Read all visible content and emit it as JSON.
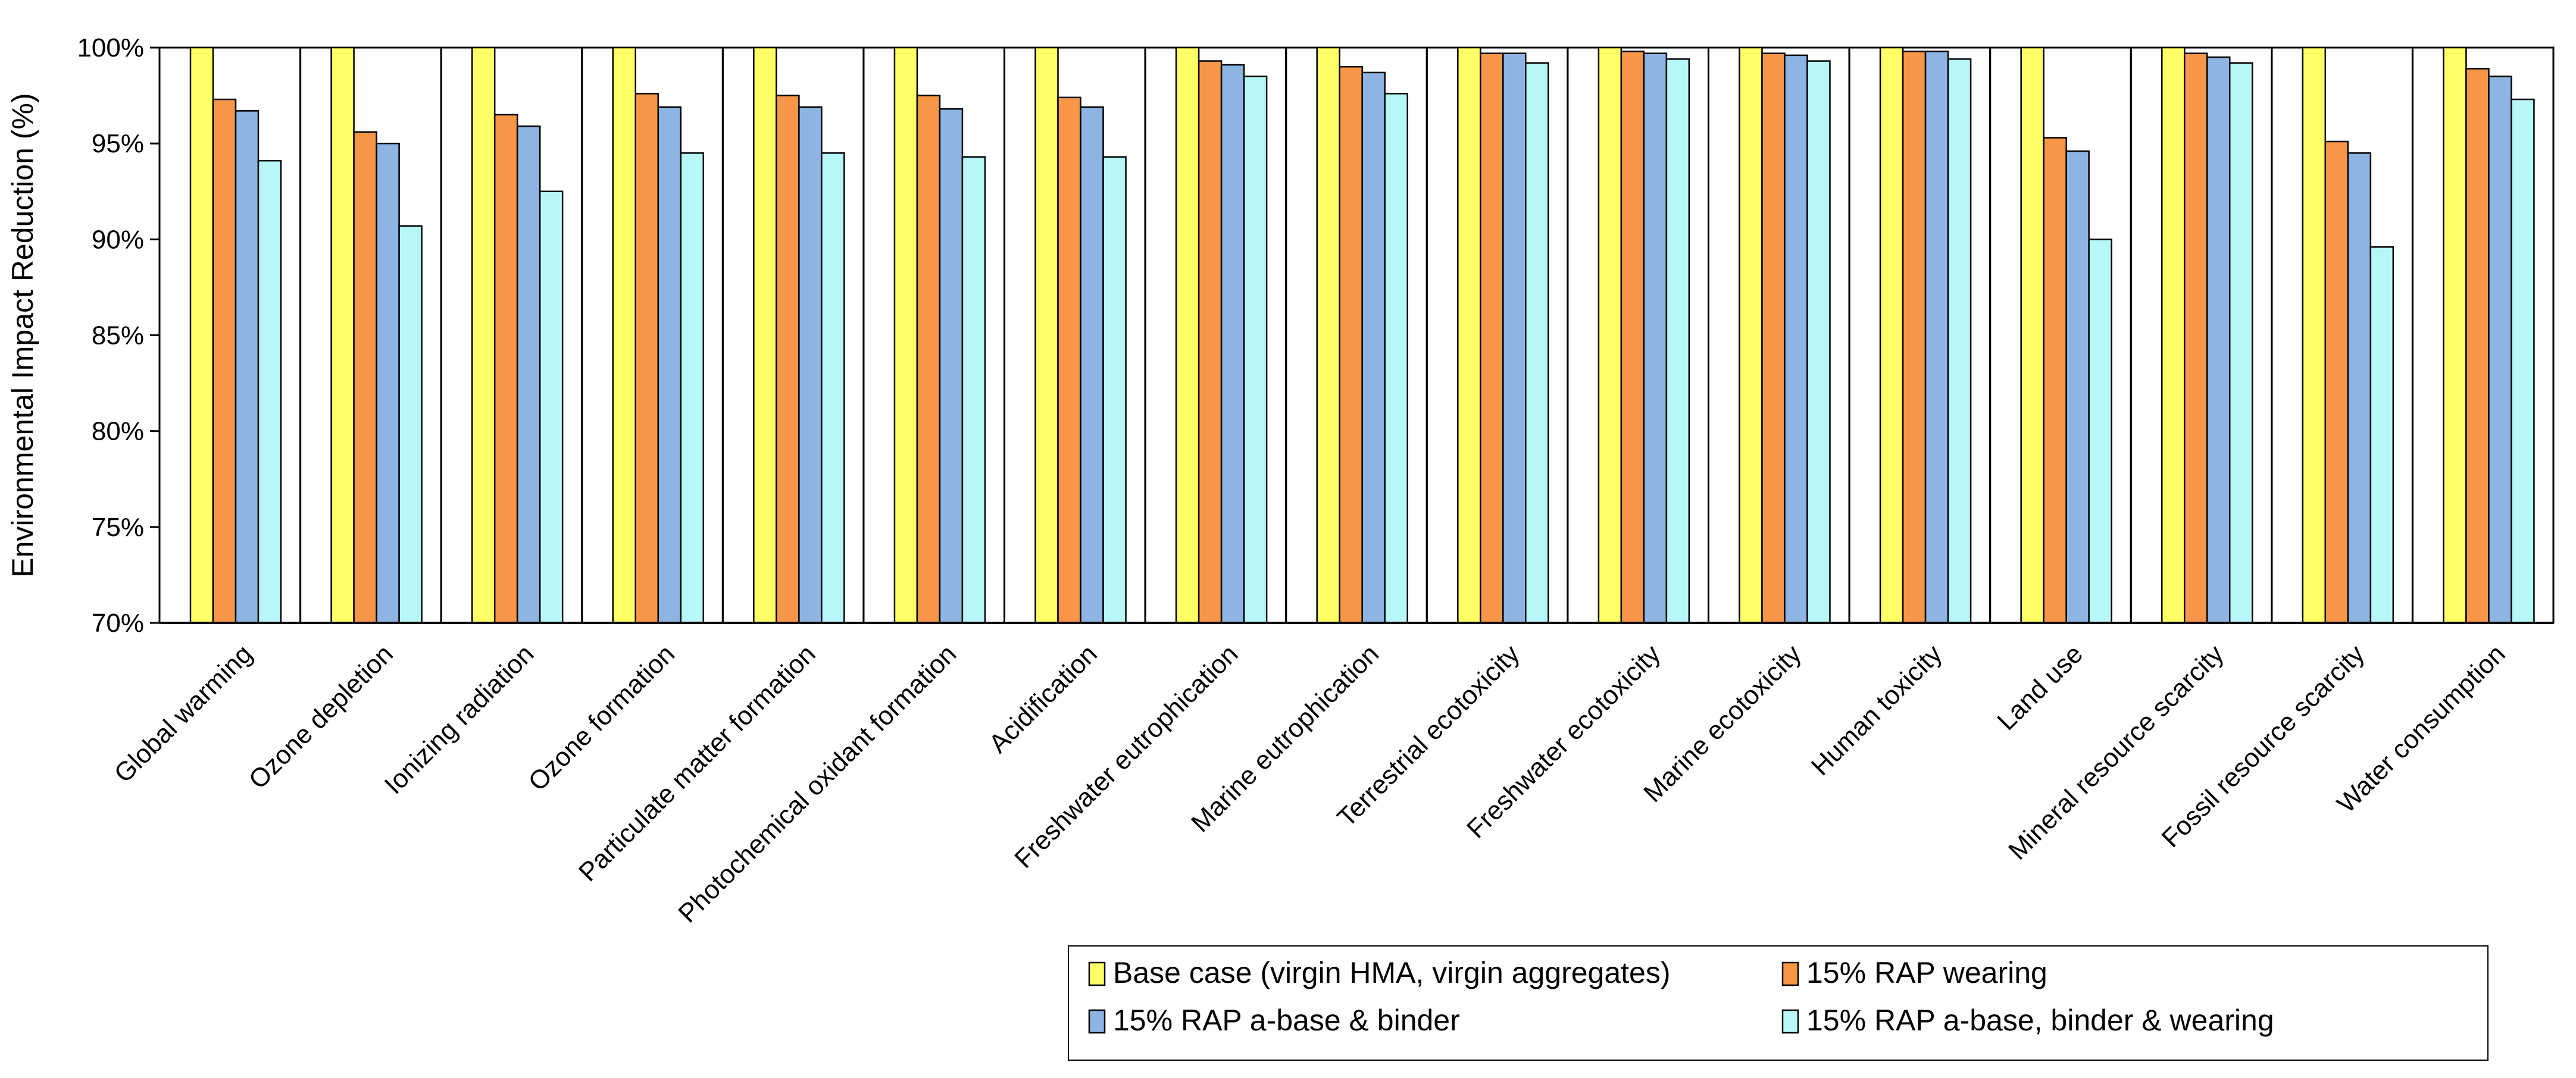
{
  "chart_data": {
    "type": "bar",
    "title": "",
    "xlabel": "",
    "ylabel": "Environmental Impact Reduction (%)",
    "ylim": [
      70,
      100
    ],
    "yticks": [
      "70%",
      "75%",
      "80%",
      "85%",
      "90%",
      "95%",
      "100%"
    ],
    "ytick_values": [
      70,
      75,
      80,
      85,
      90,
      95,
      100
    ],
    "grid": false,
    "legend_position": "bottom-right",
    "categories": [
      "Global warming",
      "Ozone depletion",
      "Ionizing radiation",
      "Ozone formation",
      "Particulate matter formation",
      "Photochemical oxidant formation",
      "Acidification",
      "Freshwater eutrophication",
      "Marine eutrophication",
      "Terrestrial ecotoxicity",
      "Freshwater ecotoxicity",
      "Marine ecotoxicity",
      "Human toxicity",
      "Land use",
      "Mineral resource scarcity",
      "Fossil resource scarcity",
      "Water consumption"
    ],
    "series": [
      {
        "name": "Base case (virgin HMA, virgin aggregates)",
        "color": "#ffff66",
        "values": [
          100,
          100,
          100,
          100,
          100,
          100,
          100,
          100,
          100,
          100,
          100,
          100,
          100,
          100,
          100,
          100,
          100
        ]
      },
      {
        "name": "15% RAP wearing",
        "color": "#f79646",
        "values": [
          97.3,
          95.6,
          96.5,
          97.6,
          97.5,
          97.5,
          97.4,
          99.3,
          99.0,
          99.7,
          99.8,
          99.7,
          99.8,
          95.3,
          99.7,
          95.1,
          98.9
        ]
      },
      {
        "name": "15% RAP a-base & binder",
        "color": "#8db4e2",
        "values": [
          96.7,
          95.0,
          95.9,
          96.9,
          96.9,
          96.8,
          96.9,
          99.1,
          98.7,
          99.7,
          99.7,
          99.6,
          99.8,
          94.6,
          99.5,
          94.5,
          98.5
        ]
      },
      {
        "name": "15% RAP a-base, binder & wearing",
        "color": "#b7f7f7",
        "values": [
          94.1,
          90.7,
          92.5,
          94.5,
          94.5,
          94.3,
          94.3,
          98.5,
          97.6,
          99.2,
          99.4,
          99.3,
          99.4,
          90.0,
          99.2,
          89.6,
          97.3
        ]
      }
    ]
  }
}
